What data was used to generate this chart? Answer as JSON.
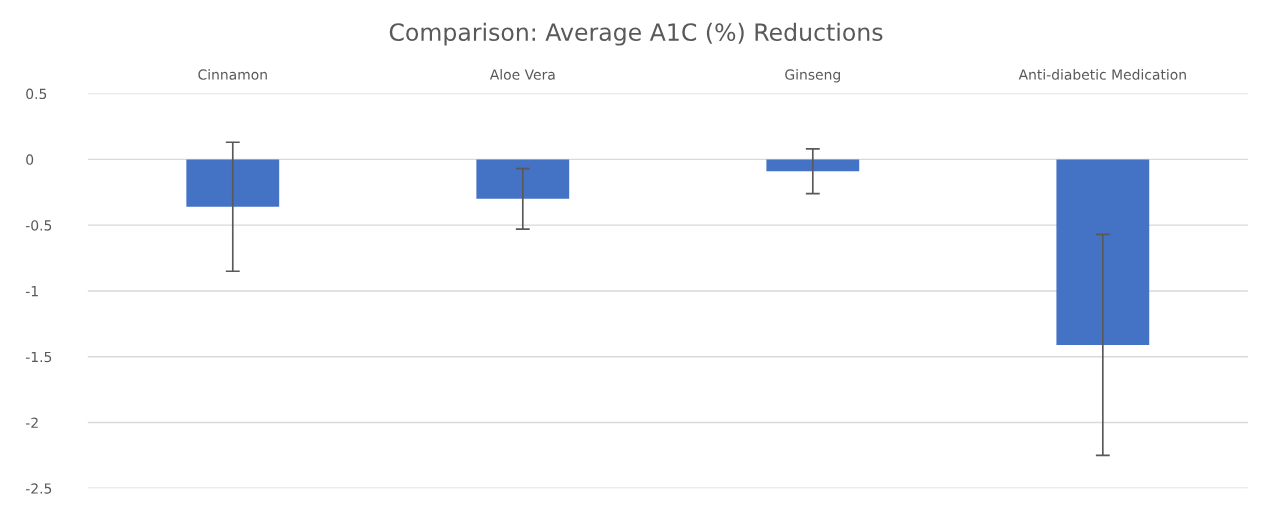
{
  "chart_data": {
    "type": "bar",
    "title": "Comparison: Average A1C (%) Reductions",
    "categories": [
      "Cinnamon",
      "Aloe Vera",
      "Ginseng",
      "Anti-diabetic Medication"
    ],
    "values": [
      -0.36,
      -0.3,
      -0.09,
      -1.41
    ],
    "errors": [
      0.49,
      0.23,
      0.17,
      0.84
    ],
    "color": "#4472c4",
    "ylim": [
      -2.5,
      0.5
    ],
    "yticks": [
      0.5,
      0,
      -0.5,
      -1,
      -1.5,
      -2,
      -2.5
    ],
    "grid": "y"
  }
}
